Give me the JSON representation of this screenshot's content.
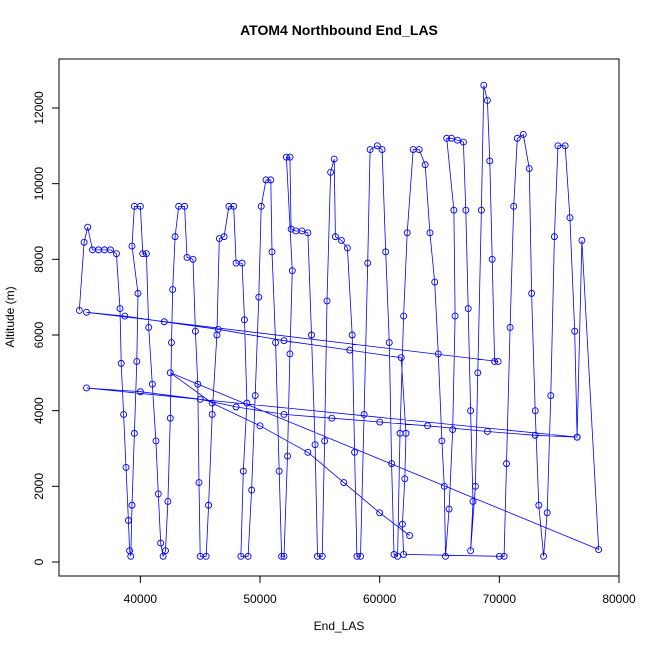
{
  "chart_data": {
    "type": "line",
    "markers": true,
    "title": "ATOM4 Northbound End_LAS",
    "x_label": "End_LAS",
    "y_label": "Altitude (m)",
    "xlim": [
      33200,
      80000
    ],
    "ylim": [
      -370,
      13295
    ],
    "xticks": [
      40000,
      50000,
      60000,
      70000,
      80000
    ],
    "yticks": [
      0,
      2000,
      4000,
      6000,
      8000,
      10000,
      12000
    ],
    "x": [
      34900,
      35300,
      35600,
      36000,
      36500,
      37000,
      37500,
      38000,
      38300,
      38400,
      38600,
      38800,
      39000,
      39100,
      39200,
      39300,
      39500,
      39700,
      39800,
      39300,
      39500,
      40000,
      40200,
      40500,
      40700,
      41000,
      41300,
      41500,
      41700,
      41900,
      42100,
      42300,
      42500,
      42600,
      42700,
      42900,
      43200,
      43700,
      43900,
      44400,
      44600,
      44800,
      44900,
      45000,
      45500,
      45700,
      46000,
      46400,
      46600,
      47000,
      47400,
      47800,
      48000,
      48500,
      48700,
      48900,
      48600,
      48400,
      49000,
      49300,
      49600,
      49900,
      50100,
      50500,
      50900,
      51000,
      51300,
      51600,
      51800,
      52000,
      52300,
      52500,
      52700,
      52200,
      52500,
      52600,
      53000,
      53500,
      54000,
      54300,
      54600,
      54800,
      55200,
      55400,
      55600,
      55900,
      56200,
      56300,
      56800,
      57300,
      57700,
      57900,
      58100,
      58400,
      58700,
      59000,
      59200,
      59800,
      60200,
      60500,
      60800,
      61000,
      61200,
      61500,
      61700,
      62000,
      62300,
      62800,
      63300,
      63800,
      64200,
      64600,
      64900,
      65200,
      65400,
      65500,
      65800,
      66100,
      66300,
      66200,
      65600,
      66000,
      66500,
      67000,
      67200,
      67400,
      67600,
      67800,
      67600,
      68000,
      68200,
      68500,
      68700,
      69000,
      69200,
      69400,
      69600,
      69900,
      35500,
      38700,
      42000,
      46500,
      52000,
      57500,
      61800,
      62200,
      62100,
      61900,
      62000,
      70000,
      70400,
      70600,
      70900,
      71200,
      71500,
      72000,
      72500,
      72700,
      73000,
      73300,
      73700,
      74000,
      74300,
      74600,
      74900,
      75500,
      75900,
      76300,
      76500,
      35500,
      40000,
      45000,
      48000,
      52000,
      56000,
      60000,
      64000,
      69000,
      73000,
      76500,
      76900,
      78300,
      42500,
      46000,
      50000,
      54000,
      57000,
      60000,
      62500
    ],
    "series": [
      {
        "color": "#0000ff",
        "values": [
          6650,
          8450,
          8850,
          8250,
          8250,
          8250,
          8250,
          8150,
          6700,
          5250,
          3900,
          2500,
          1100,
          300,
          150,
          1500,
          3400,
          5300,
          7100,
          8350,
          9400,
          9400,
          8150,
          8150,
          6200,
          4700,
          3200,
          1800,
          500,
          150,
          300,
          1600,
          3800,
          5800,
          7200,
          8600,
          9400,
          9400,
          8050,
          8000,
          6100,
          4700,
          2100,
          150,
          150,
          1500,
          3900,
          6000,
          8550,
          8600,
          9400,
          9400,
          7900,
          7900,
          6400,
          4200,
          2400,
          150,
          150,
          1900,
          4400,
          7000,
          9400,
          10100,
          10100,
          8200,
          5800,
          2400,
          150,
          150,
          2800,
          5500,
          7700,
          10700,
          10700,
          8800,
          8750,
          8750,
          8700,
          6000,
          3100,
          150,
          150,
          3200,
          6900,
          10300,
          10650,
          8600,
          8500,
          8300,
          6000,
          2900,
          150,
          150,
          3900,
          7900,
          10900,
          11000,
          10900,
          8200,
          5800,
          2600,
          200,
          150,
          3400,
          6500,
          8700,
          10900,
          10900,
          10500,
          8700,
          7400,
          5500,
          3200,
          2000,
          150,
          1400,
          3500,
          6500,
          9300,
          11200,
          11200,
          11150,
          11100,
          9300,
          6700,
          4000,
          1600,
          300,
          2000,
          5000,
          9300,
          12600,
          12200,
          10600,
          8000,
          5300,
          5300,
          6600,
          6500,
          6350,
          6150,
          5850,
          5600,
          5400,
          3400,
          2200,
          1000,
          200,
          150,
          150,
          2600,
          6200,
          9400,
          11200,
          11300,
          10400,
          7100,
          4000,
          1500,
          150,
          1300,
          4400,
          8600,
          11000,
          11000,
          9100,
          6100,
          3300,
          4600,
          4500,
          4300,
          4100,
          3900,
          3800,
          3700,
          3600,
          3450,
          3350,
          3300,
          8500,
          330,
          5000,
          4200,
          3600,
          2900,
          2100,
          1300,
          700
        ]
      }
    ]
  }
}
